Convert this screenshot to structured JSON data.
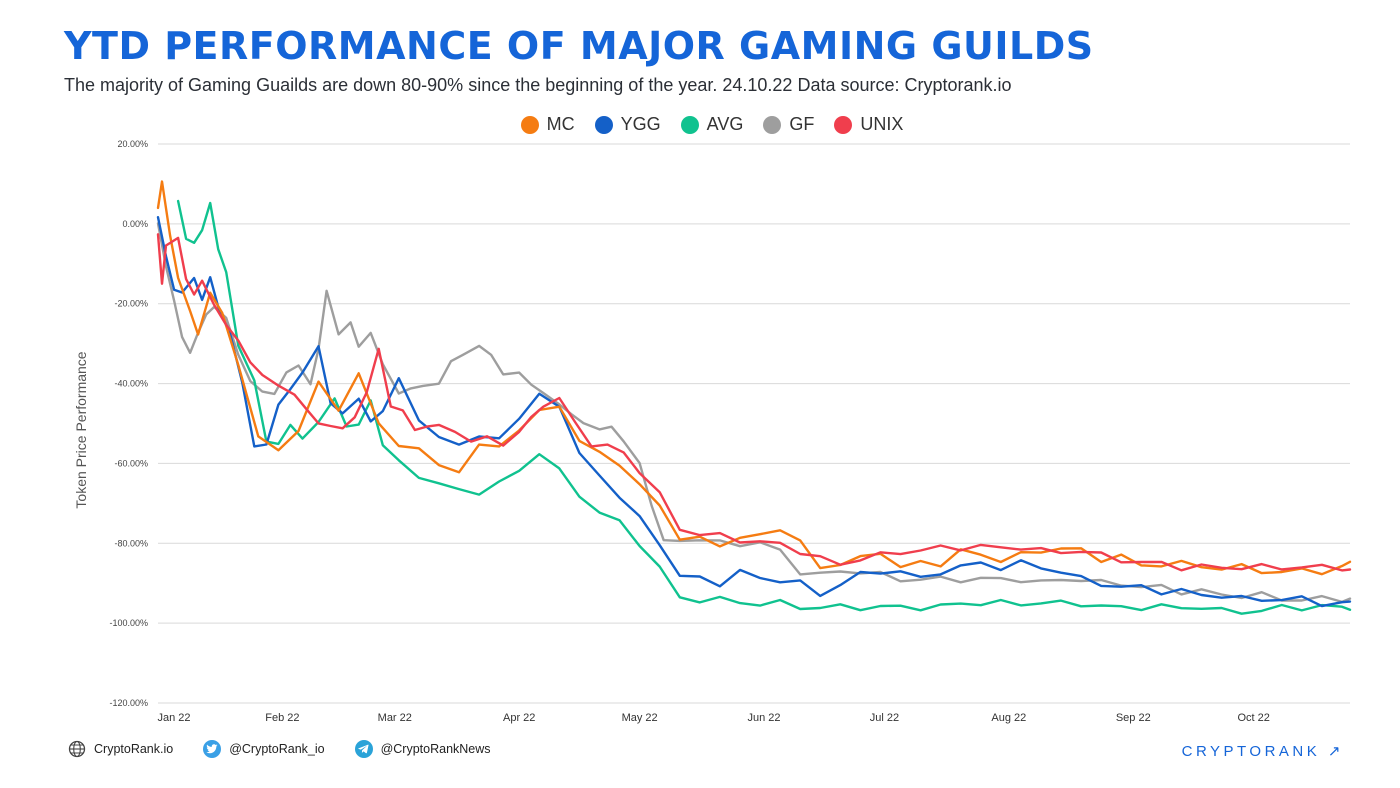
{
  "header": {
    "title": "YTD PERFORMANCE OF MAJOR GAMING GUILDS",
    "subtitle": "The majority of Gaming Guailds are down 80-90% since the beginning of the year. 24.10.22 Data source: Cryptorank.io"
  },
  "footer": {
    "website": "CryptoRank.io",
    "twitter": "@CryptoRank_io",
    "telegram": "@CryptoRankNews",
    "brand": "CRYPTORANK ↗"
  },
  "chart_data": {
    "type": "line",
    "title": "YTD PERFORMANCE OF MAJOR GAMING GUILDS",
    "ylabel": "Token Price Performance",
    "xlabel": "",
    "ylim": [
      -120,
      20
    ],
    "xlim": [
      0,
      297
    ],
    "y_ticks": [
      20,
      0,
      -20,
      -40,
      -60,
      -80,
      -100,
      -120
    ],
    "y_tick_labels": [
      "20.00%",
      "0.00%",
      "-20.00%",
      "-40.00%",
      "-60.00%",
      "-80.00%",
      "-100.00%",
      "-120.00%"
    ],
    "x_tick_days": [
      0,
      31,
      59,
      90,
      120,
      151,
      181,
      212,
      243,
      273
    ],
    "x_tick_labels": [
      "Jan 22",
      "Feb 22",
      "Mar 22",
      "Apr 22",
      "May 22",
      "Jun 22",
      "Jul 22",
      "Aug 22",
      "Sep 22",
      "Oct 22"
    ],
    "legend_position": "top-center",
    "grid": true,
    "series": [
      {
        "name": "MC",
        "color": "#f57c12",
        "x": [
          0,
          1,
          3,
          5,
          8,
          10,
          13,
          16,
          20,
          25,
          30,
          35,
          40,
          45,
          50,
          55,
          60,
          65,
          70,
          75,
          80,
          85,
          90,
          95,
          100,
          105,
          110,
          115,
          120,
          125,
          130,
          135,
          140,
          145,
          150,
          155,
          160,
          165,
          170,
          175,
          180,
          185,
          190,
          195,
          200,
          205,
          210,
          215,
          220,
          225,
          230,
          235,
          240,
          245,
          250,
          255,
          260,
          265,
          270,
          275,
          280,
          285,
          290,
          295,
          297
        ],
        "y": [
          4,
          10,
          -2,
          -14,
          -22,
          -27,
          -18,
          -22,
          -35,
          -54,
          -56,
          -52,
          -40,
          -46,
          -38,
          -50,
          -55,
          -57,
          -60,
          -62,
          -56,
          -55,
          -52,
          -47,
          -45,
          -55,
          -57,
          -60,
          -66,
          -70,
          -79,
          -79,
          -80,
          -79,
          -78,
          -76,
          -80,
          -86,
          -85,
          -84,
          -82,
          -86,
          -85,
          -85,
          -82,
          -83,
          -84,
          -83,
          -82,
          -81,
          -82,
          -84,
          -83,
          -86,
          -85,
          -85,
          -86,
          -86,
          -86,
          -87,
          -87,
          -87,
          -87,
          -86,
          -85
        ]
      },
      {
        "name": "YGG",
        "color": "#1460c8",
        "x": [
          0,
          2,
          4,
          6,
          9,
          11,
          13,
          15,
          18,
          21,
          24,
          27,
          30,
          33,
          36,
          40,
          43,
          46,
          50,
          53,
          56,
          60,
          65,
          70,
          75,
          80,
          85,
          90,
          95,
          100,
          105,
          110,
          115,
          120,
          125,
          130,
          135,
          140,
          145,
          150,
          155,
          160,
          165,
          170,
          175,
          180,
          185,
          190,
          195,
          200,
          205,
          210,
          215,
          220,
          225,
          230,
          235,
          240,
          245,
          250,
          255,
          260,
          265,
          270,
          275,
          280,
          285,
          290,
          295,
          297
        ],
        "y": [
          1,
          -8,
          -16,
          -18,
          -13,
          -19,
          -14,
          -20,
          -28,
          -40,
          -55,
          -56,
          -45,
          -41,
          -38,
          -30,
          -45,
          -48,
          -43,
          -50,
          -47,
          -38,
          -50,
          -53,
          -55,
          -54,
          -53,
          -49,
          -43,
          -45,
          -58,
          -63,
          -68,
          -74,
          -80,
          -88,
          -89,
          -90,
          -87,
          -89,
          -89,
          -90,
          -93,
          -90,
          -88,
          -87,
          -87,
          -89,
          -87,
          -86,
          -85,
          -86,
          -85,
          -86,
          -87,
          -89,
          -90,
          -91,
          -91,
          -92,
          -92,
          -93,
          -93,
          -94,
          -94,
          -94,
          -94,
          -95,
          -95,
          -95
        ]
      },
      {
        "name": "AVG",
        "color": "#10c28f",
        "x": [
          5,
          7,
          9,
          11,
          13,
          15,
          17,
          20,
          24,
          27,
          30,
          33,
          36,
          40,
          44,
          47,
          50,
          53,
          56,
          60,
          65,
          70,
          75,
          80,
          85,
          90,
          95,
          100,
          105,
          110,
          115,
          120,
          125,
          130,
          135,
          140,
          145,
          150,
          155,
          160,
          165,
          170,
          175,
          180,
          185,
          190,
          195,
          200,
          205,
          210,
          215,
          220,
          225,
          230,
          235,
          240,
          245,
          250,
          255,
          260,
          265,
          270,
          275,
          280,
          285,
          290,
          295,
          297
        ],
        "y": [
          5,
          -3,
          -5,
          -2,
          6,
          -7,
          -12,
          -30,
          -40,
          -54,
          -55,
          -51,
          -53,
          -50,
          -44,
          -50,
          -51,
          -44,
          -55,
          -60,
          -63,
          -65,
          -67,
          -67,
          -65,
          -62,
          -57,
          -62,
          -68,
          -72,
          -75,
          -80,
          -86,
          -94,
          -94,
          -94,
          -95,
          -95,
          -95,
          -96,
          -96,
          -96,
          -96,
          -96,
          -96,
          -96,
          -96,
          -95,
          -95,
          -95,
          -95,
          -95,
          -95,
          -95,
          -96,
          -96,
          -96,
          -96,
          -96,
          -96,
          -97,
          -97,
          -97,
          -96,
          -96,
          -96,
          -96,
          -96
        ]
      },
      {
        "name": "GF",
        "color": "#9e9e9e",
        "x": [
          0,
          2,
          4,
          6,
          8,
          10,
          12,
          14,
          17,
          20,
          23,
          26,
          29,
          32,
          35,
          38,
          40,
          42,
          45,
          48,
          50,
          53,
          56,
          60,
          63,
          66,
          70,
          73,
          76,
          80,
          83,
          86,
          90,
          93,
          96,
          100,
          103,
          106,
          110,
          113,
          116,
          120,
          123,
          126,
          130,
          135,
          140,
          145,
          150,
          155,
          160,
          165,
          170,
          175,
          180,
          185,
          190,
          195,
          200,
          205,
          210,
          215,
          220,
          225,
          230,
          235,
          240,
          245,
          250,
          255,
          260,
          265,
          270,
          275,
          280,
          285,
          290,
          295,
          297
        ],
        "y": [
          0,
          -10,
          -20,
          -28,
          -32,
          -28,
          -22,
          -21,
          -24,
          -32,
          -40,
          -42,
          -42,
          -38,
          -35,
          -40,
          -32,
          -16,
          -28,
          -25,
          -30,
          -28,
          -35,
          -42,
          -42,
          -40,
          -40,
          -35,
          -32,
          -31,
          -33,
          -37,
          -38,
          -40,
          -42,
          -46,
          -47,
          -50,
          -52,
          -50,
          -55,
          -60,
          -70,
          -80,
          -79,
          -79,
          -80,
          -80,
          -80,
          -82,
          -87,
          -88,
          -87,
          -87,
          -88,
          -89,
          -89,
          -89,
          -89,
          -89,
          -89,
          -89,
          -90,
          -89,
          -89,
          -90,
          -90,
          -91,
          -91,
          -92,
          -92,
          -93,
          -93,
          -93,
          -94,
          -94,
          -94,
          -94,
          -94
        ]
      },
      {
        "name": "UNIX",
        "color": "#f03e4d",
        "x": [
          0,
          1,
          2,
          3,
          5,
          7,
          9,
          11,
          14,
          17,
          20,
          23,
          26,
          30,
          34,
          37,
          40,
          43,
          46,
          49,
          52,
          55,
          58,
          61,
          64,
          67,
          70,
          74,
          78,
          82,
          86,
          90,
          93,
          96,
          100,
          104,
          108,
          112,
          116,
          120,
          125,
          130,
          135,
          140,
          145,
          150,
          155,
          160,
          165,
          170,
          175,
          180,
          185,
          190,
          195,
          200,
          205,
          210,
          215,
          220,
          225,
          230,
          235,
          240,
          245,
          250,
          255,
          260,
          265,
          270,
          275,
          280,
          285,
          290,
          295,
          297
        ],
        "y": [
          -2,
          -15,
          -6,
          -4,
          -4,
          -14,
          -17,
          -15,
          -20,
          -25,
          -30,
          -34,
          -38,
          -41,
          -42,
          -47,
          -50,
          -50,
          -52,
          -48,
          -42,
          -32,
          -45,
          -47,
          -52,
          -50,
          -51,
          -52,
          -54,
          -54,
          -55,
          -52,
          -49,
          -45,
          -44,
          -50,
          -55,
          -56,
          -57,
          -62,
          -68,
          -76,
          -78,
          -78,
          -79,
          -80,
          -80,
          -82,
          -84,
          -85,
          -84,
          -83,
          -82,
          -82,
          -81,
          -81,
          -81,
          -81,
          -81,
          -82,
          -82,
          -82,
          -83,
          -84,
          -85,
          -85,
          -86,
          -86,
          -86,
          -86,
          -86,
          -86,
          -86,
          -86,
          -86,
          -87
        ]
      }
    ]
  }
}
